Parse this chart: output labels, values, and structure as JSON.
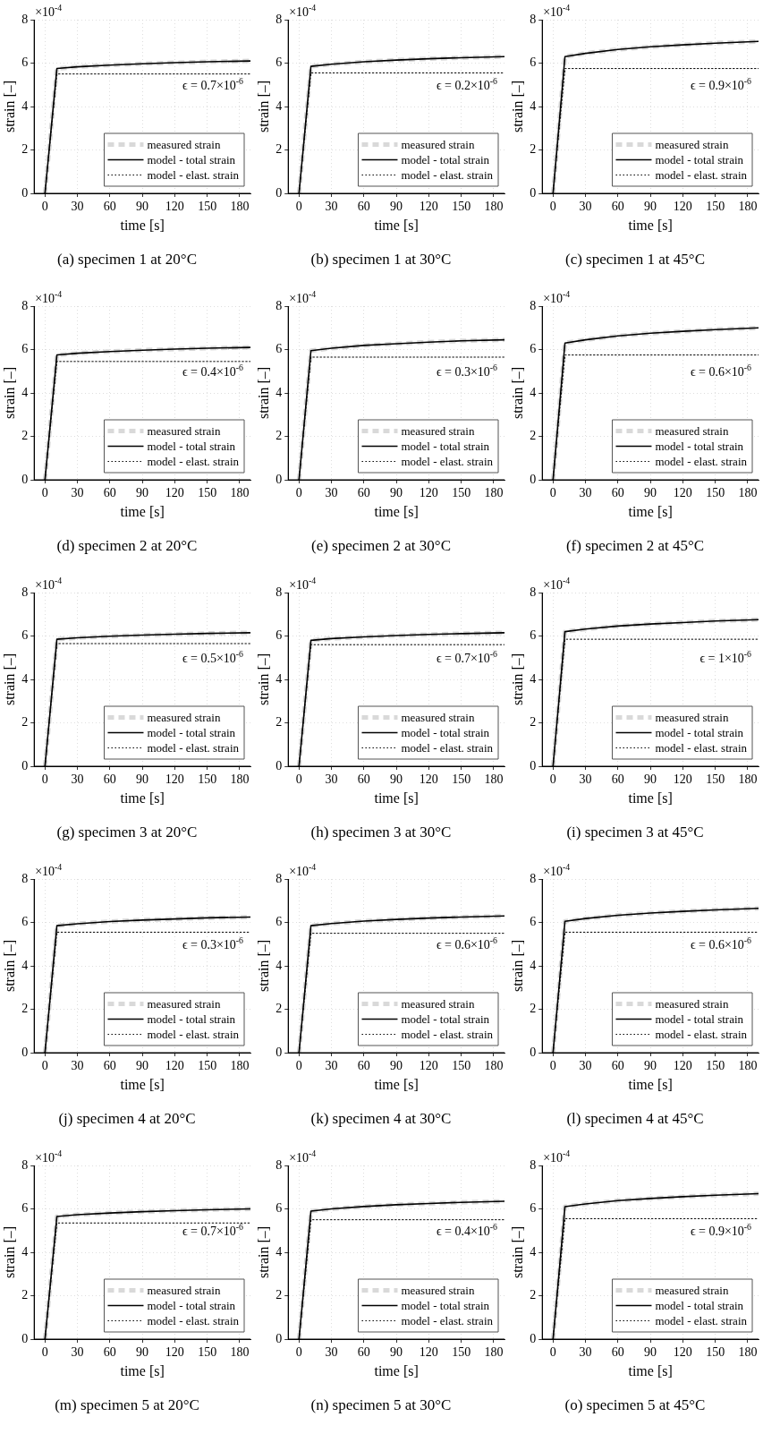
{
  "chart_data": [
    {
      "type": "line",
      "title": "(a) specimen 1 at 20°C",
      "xlabel": "time [s]",
      "ylabel": "strain [–]",
      "annotations": [
        "×10$^{-4}$",
        "ϵ = 0.7×10$^{-6}$"
      ],
      "x": [
        0,
        11,
        30,
        60,
        90,
        120,
        150,
        190
      ],
      "xlim": [
        -10,
        190
      ],
      "xticks": [
        0,
        30,
        60,
        90,
        120,
        150,
        180
      ],
      "ylim": [
        0,
        8
      ],
      "yticks": [
        0,
        2,
        4,
        6,
        8
      ],
      "grid": true,
      "legend": "bottom right",
      "series": [
        {
          "name": "measured strain",
          "color": "#d9d9d9",
          "line_style": "dashed",
          "values": [
            0,
            5.75,
            5.83,
            5.91,
            5.97,
            6.02,
            6.06,
            6.1
          ]
        },
        {
          "name": "model - total strain",
          "color": "#000000",
          "line_style": "solid",
          "values": [
            0,
            5.75,
            5.83,
            5.91,
            5.97,
            6.02,
            6.06,
            6.1
          ]
        },
        {
          "name": "model - elast. strain",
          "color": "#000000",
          "line_style": "dotted",
          "x": [
            0,
            11,
            190
          ],
          "values": [
            0,
            5.5,
            5.5
          ]
        }
      ]
    },
    {
      "type": "line",
      "title": "(b) specimen 1 at 30°C",
      "xlabel": "time [s]",
      "ylabel": "strain [–]",
      "annotations": [
        "×10$^{-4}$",
        "ϵ = 0.2×10$^{-6}$"
      ],
      "x": [
        0,
        11,
        30,
        60,
        90,
        120,
        150,
        190
      ],
      "xlim": [
        -10,
        190
      ],
      "xticks": [
        0,
        30,
        60,
        90,
        120,
        150,
        180
      ],
      "ylim": [
        0,
        8
      ],
      "yticks": [
        0,
        2,
        4,
        6,
        8
      ],
      "grid": true,
      "legend": "bottom right",
      "series": [
        {
          "name": "measured strain",
          "color": "#d9d9d9",
          "line_style": "dashed",
          "values": [
            0,
            5.85,
            5.95,
            6.06,
            6.14,
            6.2,
            6.25,
            6.3
          ]
        },
        {
          "name": "model - total strain",
          "color": "#000000",
          "line_style": "solid",
          "values": [
            0,
            5.85,
            5.95,
            6.06,
            6.14,
            6.2,
            6.25,
            6.3
          ]
        },
        {
          "name": "model - elast. strain",
          "color": "#000000",
          "line_style": "dotted",
          "x": [
            0,
            11,
            190
          ],
          "values": [
            0,
            5.55,
            5.55
          ]
        }
      ]
    },
    {
      "type": "line",
      "title": "(c) specimen 1 at 45°C",
      "xlabel": "time [s]",
      "ylabel": "strain [–]",
      "annotations": [
        "×10$^{-4}$",
        "ϵ = 0.9×10$^{-6}$"
      ],
      "x": [
        0,
        11,
        30,
        60,
        90,
        120,
        150,
        190
      ],
      "xlim": [
        -10,
        190
      ],
      "xticks": [
        0,
        30,
        60,
        90,
        120,
        150,
        180
      ],
      "ylim": [
        0,
        8
      ],
      "yticks": [
        0,
        2,
        4,
        6,
        8
      ],
      "grid": true,
      "legend": "bottom right",
      "series": [
        {
          "name": "measured strain",
          "color": "#d9d9d9",
          "line_style": "dashed",
          "values": [
            0,
            6.3,
            6.45,
            6.63,
            6.75,
            6.84,
            6.92,
            7.0
          ]
        },
        {
          "name": "model - total strain",
          "color": "#000000",
          "line_style": "solid",
          "values": [
            0,
            6.3,
            6.45,
            6.63,
            6.75,
            6.84,
            6.92,
            7.0
          ]
        },
        {
          "name": "model - elast. strain",
          "color": "#000000",
          "line_style": "dotted",
          "x": [
            0,
            11,
            190
          ],
          "values": [
            0,
            5.75,
            5.75
          ]
        }
      ]
    },
    {
      "type": "line",
      "title": "(d) specimen 2 at 20°C",
      "xlabel": "time [s]",
      "ylabel": "strain [–]",
      "annotations": [
        "×10$^{-4}$",
        "ϵ = 0.4×10$^{-6}$"
      ],
      "x": [
        0,
        11,
        30,
        60,
        90,
        120,
        150,
        190
      ],
      "xlim": [
        -10,
        190
      ],
      "xticks": [
        0,
        30,
        60,
        90,
        120,
        150,
        180
      ],
      "ylim": [
        0,
        8
      ],
      "yticks": [
        0,
        2,
        4,
        6,
        8
      ],
      "grid": true,
      "legend": "bottom right",
      "series": [
        {
          "name": "measured strain",
          "color": "#d9d9d9",
          "line_style": "dashed",
          "values": [
            0,
            5.75,
            5.83,
            5.91,
            5.97,
            6.02,
            6.06,
            6.1
          ]
        },
        {
          "name": "model - total strain",
          "color": "#000000",
          "line_style": "solid",
          "values": [
            0,
            5.75,
            5.83,
            5.91,
            5.97,
            6.02,
            6.06,
            6.1
          ]
        },
        {
          "name": "model - elast. strain",
          "color": "#000000",
          "line_style": "dotted",
          "x": [
            0,
            11,
            190
          ],
          "values": [
            0,
            5.45,
            5.45
          ]
        }
      ]
    },
    {
      "type": "line",
      "title": "(e) specimen 2 at 30°C",
      "xlabel": "time [s]",
      "ylabel": "strain [–]",
      "annotations": [
        "×10$^{-4}$",
        "ϵ = 0.3×10$^{-6}$"
      ],
      "x": [
        0,
        11,
        30,
        60,
        90,
        120,
        150,
        190
      ],
      "xlim": [
        -10,
        190
      ],
      "xticks": [
        0,
        30,
        60,
        90,
        120,
        150,
        180
      ],
      "ylim": [
        0,
        8
      ],
      "yticks": [
        0,
        2,
        4,
        6,
        8
      ],
      "grid": true,
      "legend": "bottom right",
      "series": [
        {
          "name": "measured strain",
          "color": "#d9d9d9",
          "line_style": "dashed",
          "values": [
            0,
            5.95,
            6.06,
            6.19,
            6.27,
            6.34,
            6.4,
            6.45
          ]
        },
        {
          "name": "model - total strain",
          "color": "#000000",
          "line_style": "solid",
          "values": [
            0,
            5.95,
            6.06,
            6.19,
            6.27,
            6.34,
            6.4,
            6.45
          ]
        },
        {
          "name": "model - elast. strain",
          "color": "#000000",
          "line_style": "dotted",
          "x": [
            0,
            11,
            190
          ],
          "values": [
            0,
            5.65,
            5.65
          ]
        }
      ]
    },
    {
      "type": "line",
      "title": "(f) specimen 2 at 45°C",
      "xlabel": "time [s]",
      "ylabel": "strain [–]",
      "annotations": [
        "×10$^{-4}$",
        "ϵ = 0.6×10$^{-6}$"
      ],
      "x": [
        0,
        11,
        30,
        60,
        90,
        120,
        150,
        190
      ],
      "xlim": [
        -10,
        190
      ],
      "xticks": [
        0,
        30,
        60,
        90,
        120,
        150,
        180
      ],
      "ylim": [
        0,
        8
      ],
      "yticks": [
        0,
        2,
        4,
        6,
        8
      ],
      "grid": true,
      "legend": "bottom right",
      "series": [
        {
          "name": "measured strain",
          "color": "#d9d9d9",
          "line_style": "dashed",
          "values": [
            0,
            6.3,
            6.45,
            6.63,
            6.75,
            6.84,
            6.92,
            7.0
          ]
        },
        {
          "name": "model - total strain",
          "color": "#000000",
          "line_style": "solid",
          "values": [
            0,
            6.3,
            6.45,
            6.63,
            6.75,
            6.84,
            6.92,
            7.0
          ]
        },
        {
          "name": "model - elast. strain",
          "color": "#000000",
          "line_style": "dotted",
          "x": [
            0,
            11,
            190
          ],
          "values": [
            0,
            5.75,
            5.75
          ]
        }
      ]
    },
    {
      "type": "line",
      "title": "(g) specimen 3 at 20°C",
      "xlabel": "time [s]",
      "ylabel": "strain [–]",
      "annotations": [
        "×10$^{-4}$",
        "ϵ = 0.5×10$^{-6}$"
      ],
      "x": [
        0,
        11,
        30,
        60,
        90,
        120,
        150,
        190
      ],
      "xlim": [
        -10,
        190
      ],
      "xticks": [
        0,
        30,
        60,
        90,
        120,
        150,
        180
      ],
      "ylim": [
        0,
        8
      ],
      "yticks": [
        0,
        2,
        4,
        6,
        8
      ],
      "grid": true,
      "legend": "bottom right",
      "series": [
        {
          "name": "measured strain",
          "color": "#d9d9d9",
          "line_style": "dashed",
          "values": [
            0,
            5.85,
            5.92,
            5.99,
            6.04,
            6.08,
            6.12,
            6.15
          ]
        },
        {
          "name": "model - total strain",
          "color": "#000000",
          "line_style": "solid",
          "values": [
            0,
            5.85,
            5.92,
            5.99,
            6.04,
            6.08,
            6.12,
            6.15
          ]
        },
        {
          "name": "model - elast. strain",
          "color": "#000000",
          "line_style": "dotted",
          "x": [
            0,
            11,
            190
          ],
          "values": [
            0,
            5.65,
            5.65
          ]
        }
      ]
    },
    {
      "type": "line",
      "title": "(h) specimen 3 at 30°C",
      "xlabel": "time [s]",
      "ylabel": "strain [–]",
      "annotations": [
        "×10$^{-4}$",
        "ϵ = 0.7×10$^{-6}$"
      ],
      "x": [
        0,
        11,
        30,
        60,
        90,
        120,
        150,
        190
      ],
      "xlim": [
        -10,
        190
      ],
      "xticks": [
        0,
        30,
        60,
        90,
        120,
        150,
        180
      ],
      "ylim": [
        0,
        8
      ],
      "yticks": [
        0,
        2,
        4,
        6,
        8
      ],
      "grid": true,
      "legend": "bottom right",
      "series": [
        {
          "name": "measured strain",
          "color": "#d9d9d9",
          "line_style": "dashed",
          "values": [
            0,
            5.8,
            5.88,
            5.96,
            6.02,
            6.07,
            6.11,
            6.15
          ]
        },
        {
          "name": "model - total strain",
          "color": "#000000",
          "line_style": "solid",
          "values": [
            0,
            5.8,
            5.88,
            5.96,
            6.02,
            6.07,
            6.11,
            6.15
          ]
        },
        {
          "name": "model - elast. strain",
          "color": "#000000",
          "line_style": "dotted",
          "x": [
            0,
            11,
            190
          ],
          "values": [
            0,
            5.6,
            5.6
          ]
        }
      ]
    },
    {
      "type": "line",
      "title": "(i) specimen 3 at 45°C",
      "xlabel": "time [s]",
      "ylabel": "strain [–]",
      "annotations": [
        "×10$^{-4}$",
        "ϵ = 1×10$^{-6}$"
      ],
      "x": [
        0,
        11,
        30,
        60,
        90,
        120,
        150,
        190
      ],
      "xlim": [
        -10,
        190
      ],
      "xticks": [
        0,
        30,
        60,
        90,
        120,
        150,
        180
      ],
      "ylim": [
        0,
        8
      ],
      "yticks": [
        0,
        2,
        4,
        6,
        8
      ],
      "grid": true,
      "legend": "bottom right",
      "series": [
        {
          "name": "measured strain",
          "color": "#d9d9d9",
          "line_style": "dashed",
          "values": [
            0,
            6.2,
            6.32,
            6.46,
            6.55,
            6.62,
            6.69,
            6.75
          ]
        },
        {
          "name": "model - total strain",
          "color": "#000000",
          "line_style": "solid",
          "values": [
            0,
            6.2,
            6.32,
            6.46,
            6.55,
            6.62,
            6.69,
            6.75
          ]
        },
        {
          "name": "model - elast. strain",
          "color": "#000000",
          "line_style": "dotted",
          "x": [
            0,
            11,
            190
          ],
          "values": [
            0,
            5.85,
            5.85
          ]
        }
      ]
    },
    {
      "type": "line",
      "title": "(j) specimen 4 at 20°C",
      "xlabel": "time [s]",
      "ylabel": "strain [–]",
      "annotations": [
        "×10$^{-4}$",
        "ϵ = 0.3×10$^{-6}$"
      ],
      "x": [
        0,
        11,
        30,
        60,
        90,
        120,
        150,
        190
      ],
      "xlim": [
        -10,
        190
      ],
      "xticks": [
        0,
        30,
        60,
        90,
        120,
        150,
        180
      ],
      "ylim": [
        0,
        8
      ],
      "yticks": [
        0,
        2,
        4,
        6,
        8
      ],
      "grid": true,
      "legend": "bottom right",
      "series": [
        {
          "name": "measured strain",
          "color": "#d9d9d9",
          "line_style": "dashed",
          "values": [
            0,
            5.85,
            5.94,
            6.04,
            6.11,
            6.16,
            6.21,
            6.25
          ]
        },
        {
          "name": "model - total strain",
          "color": "#000000",
          "line_style": "solid",
          "values": [
            0,
            5.85,
            5.94,
            6.04,
            6.11,
            6.16,
            6.21,
            6.25
          ]
        },
        {
          "name": "model - elast. strain",
          "color": "#000000",
          "line_style": "dotted",
          "x": [
            0,
            11,
            190
          ],
          "values": [
            0,
            5.55,
            5.55
          ]
        }
      ]
    },
    {
      "type": "line",
      "title": "(k) specimen 4 at 30°C",
      "xlabel": "time [s]",
      "ylabel": "strain [–]",
      "annotations": [
        "×10$^{-4}$",
        "ϵ = 0.6×10$^{-6}$"
      ],
      "x": [
        0,
        11,
        30,
        60,
        90,
        120,
        150,
        190
      ],
      "xlim": [
        -10,
        190
      ],
      "xticks": [
        0,
        30,
        60,
        90,
        120,
        150,
        180
      ],
      "ylim": [
        0,
        8
      ],
      "yticks": [
        0,
        2,
        4,
        6,
        8
      ],
      "grid": true,
      "legend": "bottom right",
      "series": [
        {
          "name": "measured strain",
          "color": "#d9d9d9",
          "line_style": "dashed",
          "values": [
            0,
            5.85,
            5.95,
            6.06,
            6.14,
            6.2,
            6.25,
            6.3
          ]
        },
        {
          "name": "model - total strain",
          "color": "#000000",
          "line_style": "solid",
          "values": [
            0,
            5.85,
            5.95,
            6.06,
            6.14,
            6.2,
            6.25,
            6.3
          ]
        },
        {
          "name": "model - elast. strain",
          "color": "#000000",
          "line_style": "dotted",
          "x": [
            0,
            11,
            190
          ],
          "values": [
            0,
            5.5,
            5.5
          ]
        }
      ]
    },
    {
      "type": "line",
      "title": "(l) specimen 4 at 45°C",
      "xlabel": "time [s]",
      "ylabel": "strain [–]",
      "annotations": [
        "×10$^{-4}$",
        "ϵ = 0.6×10$^{-6}$"
      ],
      "x": [
        0,
        11,
        30,
        60,
        90,
        120,
        150,
        190
      ],
      "xlim": [
        -10,
        190
      ],
      "xticks": [
        0,
        30,
        60,
        90,
        120,
        150,
        180
      ],
      "ylim": [
        0,
        8
      ],
      "yticks": [
        0,
        2,
        4,
        6,
        8
      ],
      "grid": true,
      "legend": "bottom right",
      "series": [
        {
          "name": "measured strain",
          "color": "#d9d9d9",
          "line_style": "dashed",
          "values": [
            0,
            6.05,
            6.18,
            6.33,
            6.43,
            6.51,
            6.58,
            6.65
          ]
        },
        {
          "name": "model - total strain",
          "color": "#000000",
          "line_style": "solid",
          "values": [
            0,
            6.05,
            6.18,
            6.33,
            6.43,
            6.51,
            6.58,
            6.65
          ]
        },
        {
          "name": "model - elast. strain",
          "color": "#000000",
          "line_style": "dotted",
          "x": [
            0,
            11,
            190
          ],
          "values": [
            0,
            5.55,
            5.55
          ]
        }
      ]
    },
    {
      "type": "line",
      "title": "(m) specimen 5 at 20°C",
      "xlabel": "time [s]",
      "ylabel": "strain [–]",
      "annotations": [
        "×10$^{-4}$",
        "ϵ = 0.7×10$^{-6}$"
      ],
      "x": [
        0,
        11,
        30,
        60,
        90,
        120,
        150,
        190
      ],
      "xlim": [
        -10,
        190
      ],
      "xticks": [
        0,
        30,
        60,
        90,
        120,
        150,
        180
      ],
      "ylim": [
        0,
        8
      ],
      "yticks": [
        0,
        2,
        4,
        6,
        8
      ],
      "grid": true,
      "legend": "bottom right",
      "series": [
        {
          "name": "measured strain",
          "color": "#d9d9d9",
          "line_style": "dashed",
          "values": [
            0,
            5.65,
            5.73,
            5.81,
            5.87,
            5.92,
            5.96,
            6.0
          ]
        },
        {
          "name": "model - total strain",
          "color": "#000000",
          "line_style": "solid",
          "values": [
            0,
            5.65,
            5.73,
            5.81,
            5.87,
            5.92,
            5.96,
            6.0
          ]
        },
        {
          "name": "model - elast. strain",
          "color": "#000000",
          "line_style": "dotted",
          "x": [
            0,
            11,
            190
          ],
          "values": [
            0,
            5.35,
            5.35
          ]
        }
      ]
    },
    {
      "type": "line",
      "title": "(n) specimen 5 at 30°C",
      "xlabel": "time [s]",
      "ylabel": "strain [–]",
      "annotations": [
        "×10$^{-4}$",
        "ϵ = 0.4×10$^{-6}$"
      ],
      "x": [
        0,
        11,
        30,
        60,
        90,
        120,
        150,
        190
      ],
      "xlim": [
        -10,
        190
      ],
      "xticks": [
        0,
        30,
        60,
        90,
        120,
        150,
        180
      ],
      "ylim": [
        0,
        8
      ],
      "yticks": [
        0,
        2,
        4,
        6,
        8
      ],
      "grid": true,
      "legend": "bottom right",
      "series": [
        {
          "name": "measured strain",
          "color": "#d9d9d9",
          "line_style": "dashed",
          "values": [
            0,
            5.9,
            6.0,
            6.11,
            6.19,
            6.25,
            6.3,
            6.35
          ]
        },
        {
          "name": "model - total strain",
          "color": "#000000",
          "line_style": "solid",
          "values": [
            0,
            5.9,
            6.0,
            6.11,
            6.19,
            6.25,
            6.3,
            6.35
          ]
        },
        {
          "name": "model - elast. strain",
          "color": "#000000",
          "line_style": "dotted",
          "x": [
            0,
            11,
            190
          ],
          "values": [
            0,
            5.5,
            5.5
          ]
        }
      ]
    },
    {
      "type": "line",
      "title": "(o) specimen 5 at 45°C",
      "xlabel": "time [s]",
      "ylabel": "strain [–]",
      "annotations": [
        "×10$^{-4}$",
        "ϵ = 0.9×10$^{-6}$"
      ],
      "x": [
        0,
        11,
        30,
        60,
        90,
        120,
        150,
        190
      ],
      "xlim": [
        -10,
        190
      ],
      "xticks": [
        0,
        30,
        60,
        90,
        120,
        150,
        180
      ],
      "ylim": [
        0,
        8
      ],
      "yticks": [
        0,
        2,
        4,
        6,
        8
      ],
      "grid": true,
      "legend": "bottom right",
      "series": [
        {
          "name": "measured strain",
          "color": "#d9d9d9",
          "line_style": "dashed",
          "values": [
            0,
            6.1,
            6.23,
            6.38,
            6.48,
            6.56,
            6.63,
            6.7
          ]
        },
        {
          "name": "model - total strain",
          "color": "#000000",
          "line_style": "solid",
          "values": [
            0,
            6.1,
            6.23,
            6.38,
            6.48,
            6.56,
            6.63,
            6.7
          ]
        },
        {
          "name": "model - elast. strain",
          "color": "#000000",
          "line_style": "dotted",
          "x": [
            0,
            11,
            190
          ],
          "values": [
            0,
            5.55,
            5.55
          ]
        }
      ]
    }
  ]
}
